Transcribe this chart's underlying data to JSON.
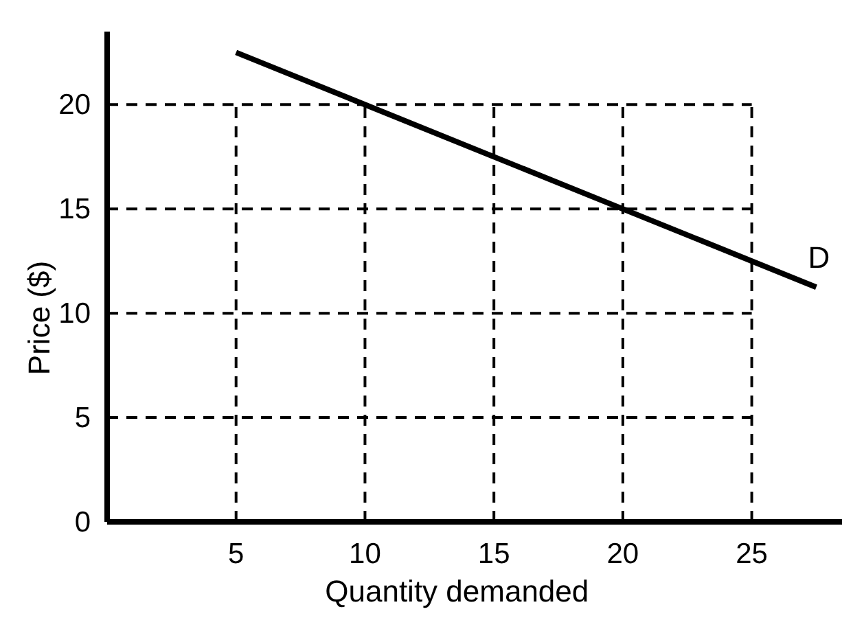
{
  "chart_data": {
    "type": "line",
    "xlabel": "Quantity demanded",
    "ylabel": "Price ($)",
    "xlim": [
      0,
      28.5
    ],
    "ylim": [
      0,
      23.5
    ],
    "xticks": [
      {
        "value": 0,
        "label": null
      },
      5,
      10,
      15,
      20,
      25
    ],
    "yticks": [
      0,
      5,
      10,
      15,
      20
    ],
    "grid": true,
    "line_style": "solid",
    "marker": "none",
    "series": [
      {
        "name": "D",
        "color": "#000000",
        "x": [
          5,
          27.5
        ],
        "values": [
          22.5,
          11.25
        ]
      }
    ]
  }
}
